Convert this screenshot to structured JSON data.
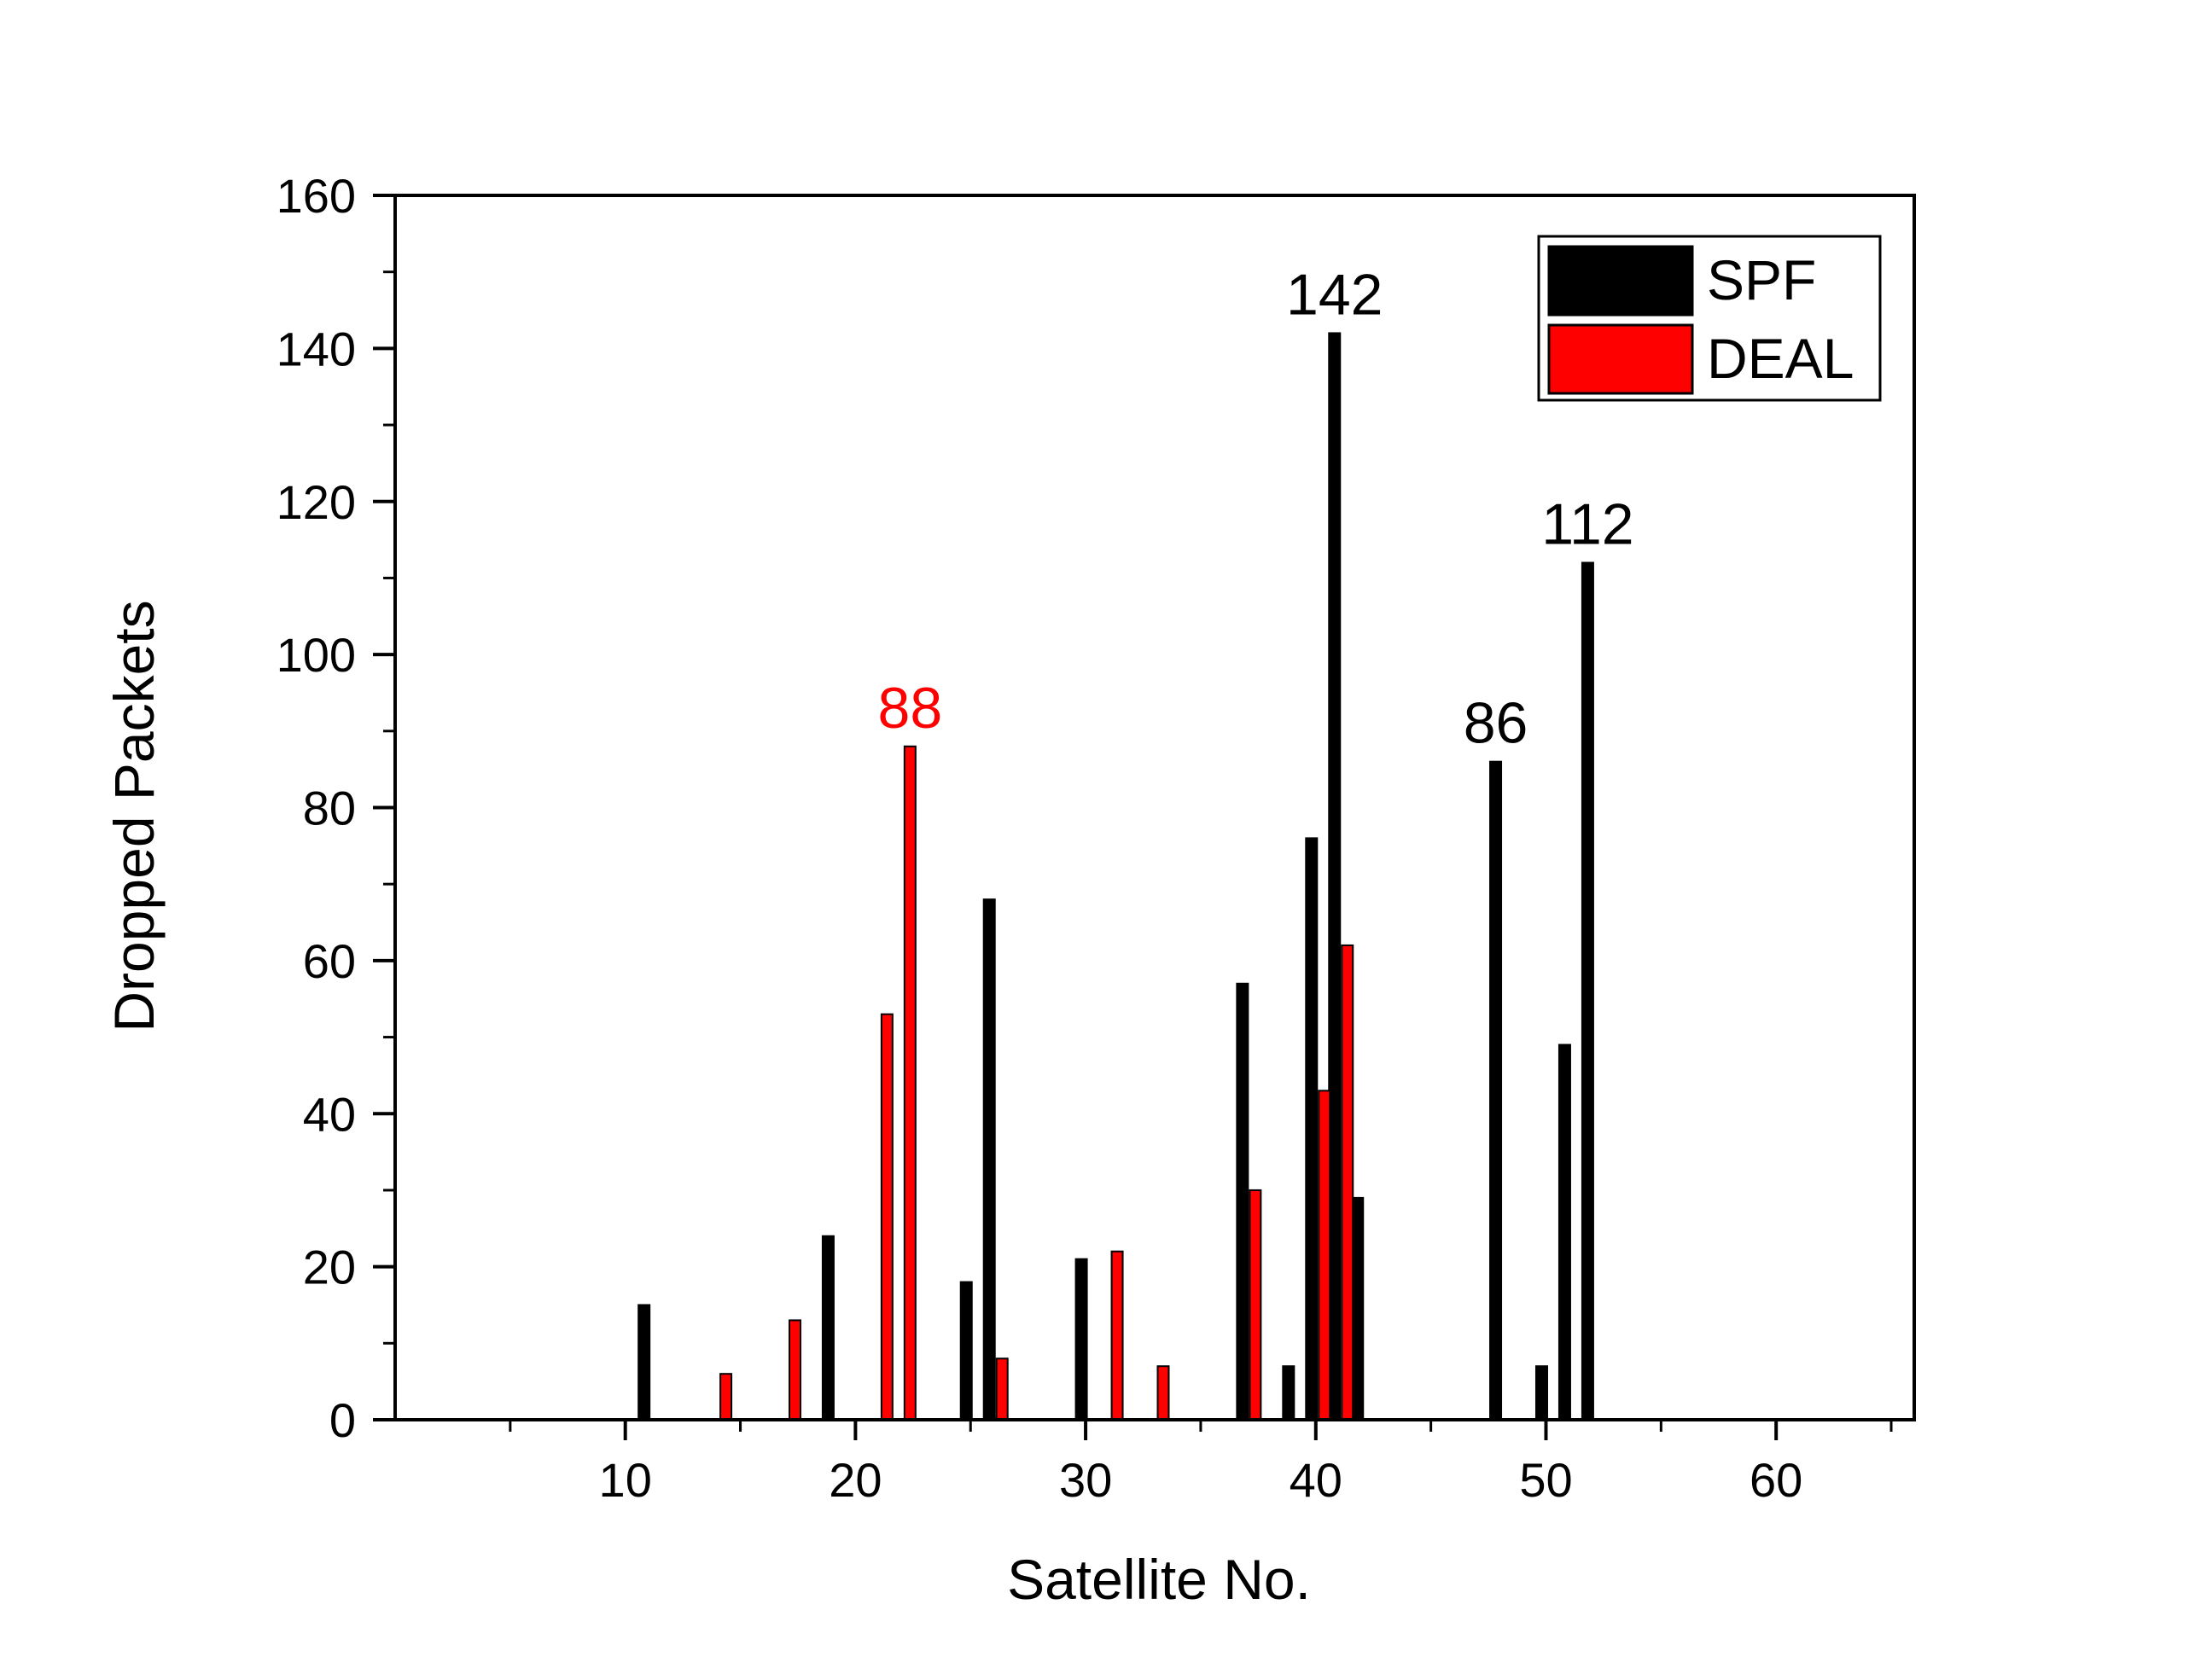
{
  "chart_data": {
    "type": "bar",
    "xlabel": "Satellite No.",
    "ylabel": "Dropped Packets",
    "xlim": [
      0,
      66
    ],
    "ylim": [
      0,
      160
    ],
    "x_ticks": [
      10,
      20,
      30,
      40,
      50,
      60
    ],
    "y_ticks": [
      0,
      20,
      40,
      60,
      80,
      100,
      120,
      140,
      160
    ],
    "grid": false,
    "legend_position": "top-right",
    "series": [
      {
        "name": "SPF",
        "color": "#000000",
        "points": [
          {
            "x": 11,
            "y": 15
          },
          {
            "x": 19,
            "y": 24
          },
          {
            "x": 25,
            "y": 18
          },
          {
            "x": 26,
            "y": 68
          },
          {
            "x": 30,
            "y": 21
          },
          {
            "x": 37,
            "y": 57
          },
          {
            "x": 39,
            "y": 7
          },
          {
            "x": 40,
            "y": 76
          },
          {
            "x": 41,
            "y": 142
          },
          {
            "x": 42,
            "y": 29
          },
          {
            "x": 48,
            "y": 86
          },
          {
            "x": 50,
            "y": 7
          },
          {
            "x": 51,
            "y": 49
          },
          {
            "x": 52,
            "y": 112
          }
        ]
      },
      {
        "name": "DEAL",
        "color": "#ff0000",
        "points": [
          {
            "x": 14,
            "y": 6
          },
          {
            "x": 17,
            "y": 13
          },
          {
            "x": 21,
            "y": 53
          },
          {
            "x": 22,
            "y": 88
          },
          {
            "x": 26,
            "y": 8
          },
          {
            "x": 31,
            "y": 22
          },
          {
            "x": 33,
            "y": 7
          },
          {
            "x": 37,
            "y": 30
          },
          {
            "x": 40,
            "y": 43
          },
          {
            "x": 41,
            "y": 62
          }
        ]
      }
    ],
    "annotations": [
      {
        "text": "88",
        "series": "DEAL",
        "x": 22,
        "y": 88,
        "color": "#ff0000"
      },
      {
        "text": "142",
        "series": "SPF",
        "x": 41,
        "y": 142,
        "color": "#000000"
      },
      {
        "text": "86",
        "series": "SPF",
        "x": 48,
        "y": 86,
        "color": "#000000"
      },
      {
        "text": "112",
        "series": "SPF",
        "x": 52,
        "y": 112,
        "color": "#000000"
      }
    ]
  }
}
